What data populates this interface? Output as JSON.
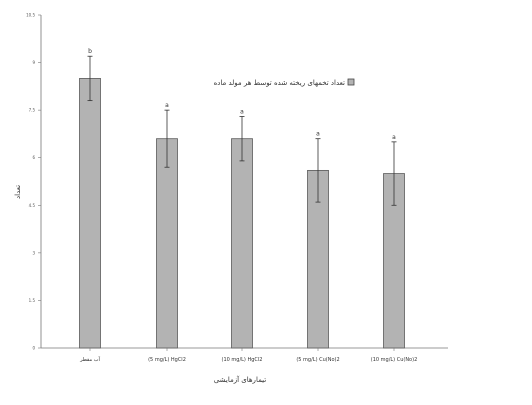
{
  "chart_data": {
    "type": "bar",
    "categories": [
      "آب مقطر",
      "(5 mg/L) HgCl2",
      "(10 mg/L) HgCl2",
      "(5 mg/L) Cu(No)2",
      "(10 mg/L) Cu(No)2"
    ],
    "values": [
      8.5,
      6.6,
      6.6,
      5.6,
      5.5
    ],
    "errors": [
      0.7,
      0.9,
      0.7,
      1.0,
      1.0
    ],
    "significance": [
      "b",
      "a",
      "a",
      "a",
      "a"
    ],
    "yticks": [
      0,
      1.5,
      3.0,
      4.5,
      6.0,
      7.5,
      9.0,
      10.5
    ],
    "ylim": [
      0,
      10.5
    ],
    "ylabel": "تعداد",
    "xlabel": "تیمارهای آزمایشی",
    "legend": {
      "label": "تعداد تخمهای ریخته شده توسط هر مولد ماده",
      "placement": "top-right"
    },
    "grid": false,
    "bar_color": "#b3b3b3",
    "bar_stroke": "#5a5a5a"
  }
}
